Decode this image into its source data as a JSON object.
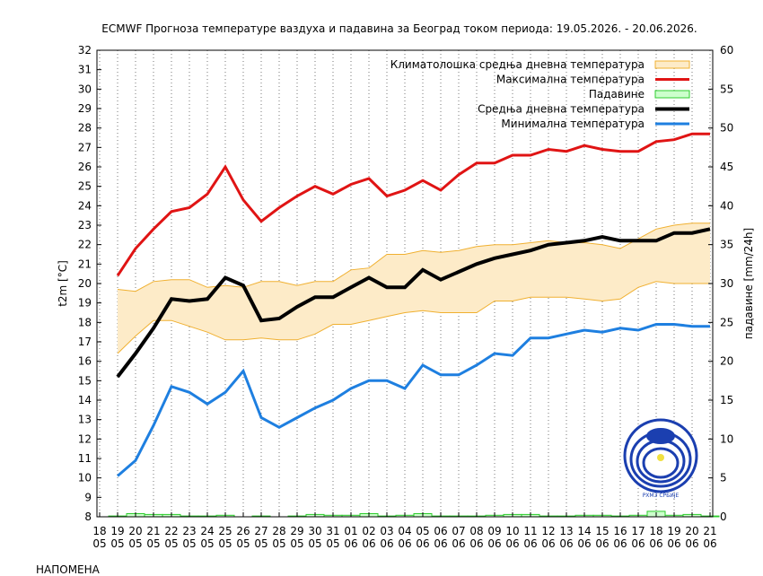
{
  "chart_data": {
    "type": "line",
    "title": "ECMWF Прогноза температуре ваздуха и падавина за Београд током периода: 19.05.2026. - 20.06.2026.",
    "ylabel_left": "t2m [°C]",
    "ylabel_right": "падавине [mm/24h]",
    "ylim_left": [
      8,
      32
    ],
    "ylim_right": [
      0,
      60
    ],
    "grid": "vertical dotted",
    "legend_position": "top-right",
    "x_day": [
      "18",
      "19",
      "20",
      "21",
      "22",
      "23",
      "24",
      "25",
      "26",
      "27",
      "28",
      "29",
      "30",
      "31",
      "01",
      "02",
      "03",
      "04",
      "05",
      "06",
      "07",
      "08",
      "09",
      "10",
      "11",
      "12",
      "13",
      "14",
      "15",
      "16",
      "17",
      "18",
      "19",
      "20",
      "21"
    ],
    "x_month": [
      "05",
      "05",
      "05",
      "05",
      "05",
      "05",
      "05",
      "05",
      "05",
      "05",
      "05",
      "05",
      "05",
      "05",
      "06",
      "06",
      "06",
      "06",
      "06",
      "06",
      "06",
      "06",
      "06",
      "06",
      "06",
      "06",
      "06",
      "06",
      "06",
      "06",
      "06",
      "06",
      "06",
      "06",
      "06"
    ],
    "left_ticks": [
      "8",
      "9",
      "10",
      "11",
      "12",
      "13",
      "14",
      "15",
      "16",
      "17",
      "18",
      "19",
      "20",
      "21",
      "22",
      "23",
      "24",
      "25",
      "26",
      "27",
      "28",
      "29",
      "30",
      "31",
      "32"
    ],
    "right_ticks": [
      "0",
      "5",
      "10",
      "15",
      "20",
      "25",
      "30",
      "35",
      "40",
      "45",
      "50",
      "55",
      "60"
    ],
    "series": [
      {
        "name": "Климатолошка средња дневна температура",
        "color": "#f0b030",
        "fill": "#fdebc8",
        "x": [
          19,
          20,
          21,
          22,
          23,
          24,
          25,
          26,
          27,
          28,
          29,
          30,
          31,
          32,
          33,
          34,
          35,
          36,
          37,
          38,
          39,
          40,
          41,
          42,
          43,
          44,
          45,
          46,
          47,
          48,
          49,
          50,
          51,
          52
        ],
        "upper": [
          19.7,
          19.6,
          20.1,
          20.2,
          20.2,
          19.8,
          19.9,
          19.8,
          20.1,
          20.1,
          19.9,
          20.1,
          20.1,
          20.7,
          20.8,
          21.5,
          21.5,
          21.7,
          21.6,
          21.7,
          21.9,
          22.0,
          22.0,
          22.1,
          22.2,
          22.1,
          22.1,
          22.0,
          21.8,
          22.3,
          22.8,
          23.0,
          23.1,
          23.1
        ],
        "lower": [
          16.4,
          17.3,
          18.1,
          18.1,
          17.8,
          17.5,
          17.1,
          17.1,
          17.2,
          17.1,
          17.1,
          17.4,
          17.9,
          17.9,
          18.1,
          18.3,
          18.5,
          18.6,
          18.5,
          18.5,
          18.5,
          19.1,
          19.1,
          19.3,
          19.3,
          19.3,
          19.2,
          19.1,
          19.2,
          19.8,
          20.1,
          20.0,
          20.0,
          20.0
        ]
      },
      {
        "name": "Максимална температура",
        "color": "#e01414",
        "x": [
          19,
          20,
          21,
          22,
          23,
          24,
          25,
          26,
          27,
          28,
          29,
          30,
          31,
          32,
          33,
          34,
          35,
          36,
          37,
          38,
          39,
          40,
          41,
          42,
          43,
          44,
          45,
          46,
          47,
          48,
          49,
          50,
          51,
          52
        ],
        "values": [
          20.4,
          21.8,
          22.8,
          23.7,
          23.9,
          24.6,
          26.0,
          24.3,
          23.2,
          23.9,
          24.5,
          25.0,
          24.6,
          25.1,
          25.4,
          24.5,
          24.8,
          25.3,
          24.8,
          25.6,
          26.2,
          26.2,
          26.6,
          26.6,
          26.9,
          26.8,
          27.1,
          26.9,
          26.8,
          26.8,
          27.3,
          27.4,
          27.7,
          27.7
        ]
      },
      {
        "name": "Падавине",
        "color": "#2ecc2e",
        "fill": "#ccffcc",
        "axis": "right",
        "x": [
          19,
          20,
          21,
          22,
          23,
          24,
          25,
          26,
          27,
          28,
          29,
          30,
          31,
          32,
          33,
          34,
          35,
          36,
          37,
          38,
          39,
          40,
          41,
          42,
          43,
          44,
          45,
          46,
          47,
          48,
          49,
          50,
          51,
          52
        ],
        "values": [
          0.1,
          0.4,
          0.3,
          0.3,
          0.1,
          0.1,
          0.2,
          0.0,
          0.1,
          0.0,
          0.1,
          0.3,
          0.2,
          0.2,
          0.4,
          0.1,
          0.2,
          0.4,
          0.1,
          0.1,
          0.1,
          0.2,
          0.3,
          0.3,
          0.1,
          0.1,
          0.2,
          0.2,
          0.1,
          0.2,
          0.7,
          0.2,
          0.3,
          0.1
        ]
      },
      {
        "name": "Средња дневна температура",
        "color": "#000000",
        "x": [
          19,
          20,
          21,
          22,
          23,
          24,
          25,
          26,
          27,
          28,
          29,
          30,
          31,
          32,
          33,
          34,
          35,
          36,
          37,
          38,
          39,
          40,
          41,
          42,
          43,
          44,
          45,
          46,
          47,
          48,
          49,
          50,
          51,
          52
        ],
        "values": [
          15.2,
          16.4,
          17.7,
          19.2,
          19.1,
          19.2,
          20.3,
          19.9,
          18.1,
          18.2,
          18.8,
          19.3,
          19.3,
          19.8,
          20.3,
          19.8,
          19.8,
          20.7,
          20.2,
          20.6,
          21.0,
          21.3,
          21.5,
          21.7,
          22.0,
          22.1,
          22.2,
          22.4,
          22.2,
          22.2,
          22.2,
          22.6,
          22.6,
          22.8
        ]
      },
      {
        "name": "Минимална температура",
        "color": "#1e7fe0",
        "x": [
          19,
          20,
          21,
          22,
          23,
          24,
          25,
          26,
          27,
          28,
          29,
          30,
          31,
          32,
          33,
          34,
          35,
          36,
          37,
          38,
          39,
          40,
          41,
          42,
          43,
          44,
          45,
          46,
          47,
          48,
          49,
          50,
          51,
          52
        ],
        "values": [
          10.1,
          10.9,
          12.7,
          14.7,
          14.4,
          13.8,
          14.4,
          15.5,
          13.1,
          12.6,
          13.1,
          13.6,
          14.0,
          14.6,
          15.0,
          15.0,
          14.6,
          15.8,
          15.3,
          15.3,
          15.8,
          16.4,
          16.3,
          17.2,
          17.2,
          17.4,
          17.6,
          17.5,
          17.7,
          17.6,
          17.9,
          17.9,
          17.8,
          17.8
        ]
      }
    ]
  },
  "logo": {
    "name": "rhmz-logo",
    "text": "РХМЗ СРБИЈЕ"
  },
  "note": "НАПОМЕНА"
}
